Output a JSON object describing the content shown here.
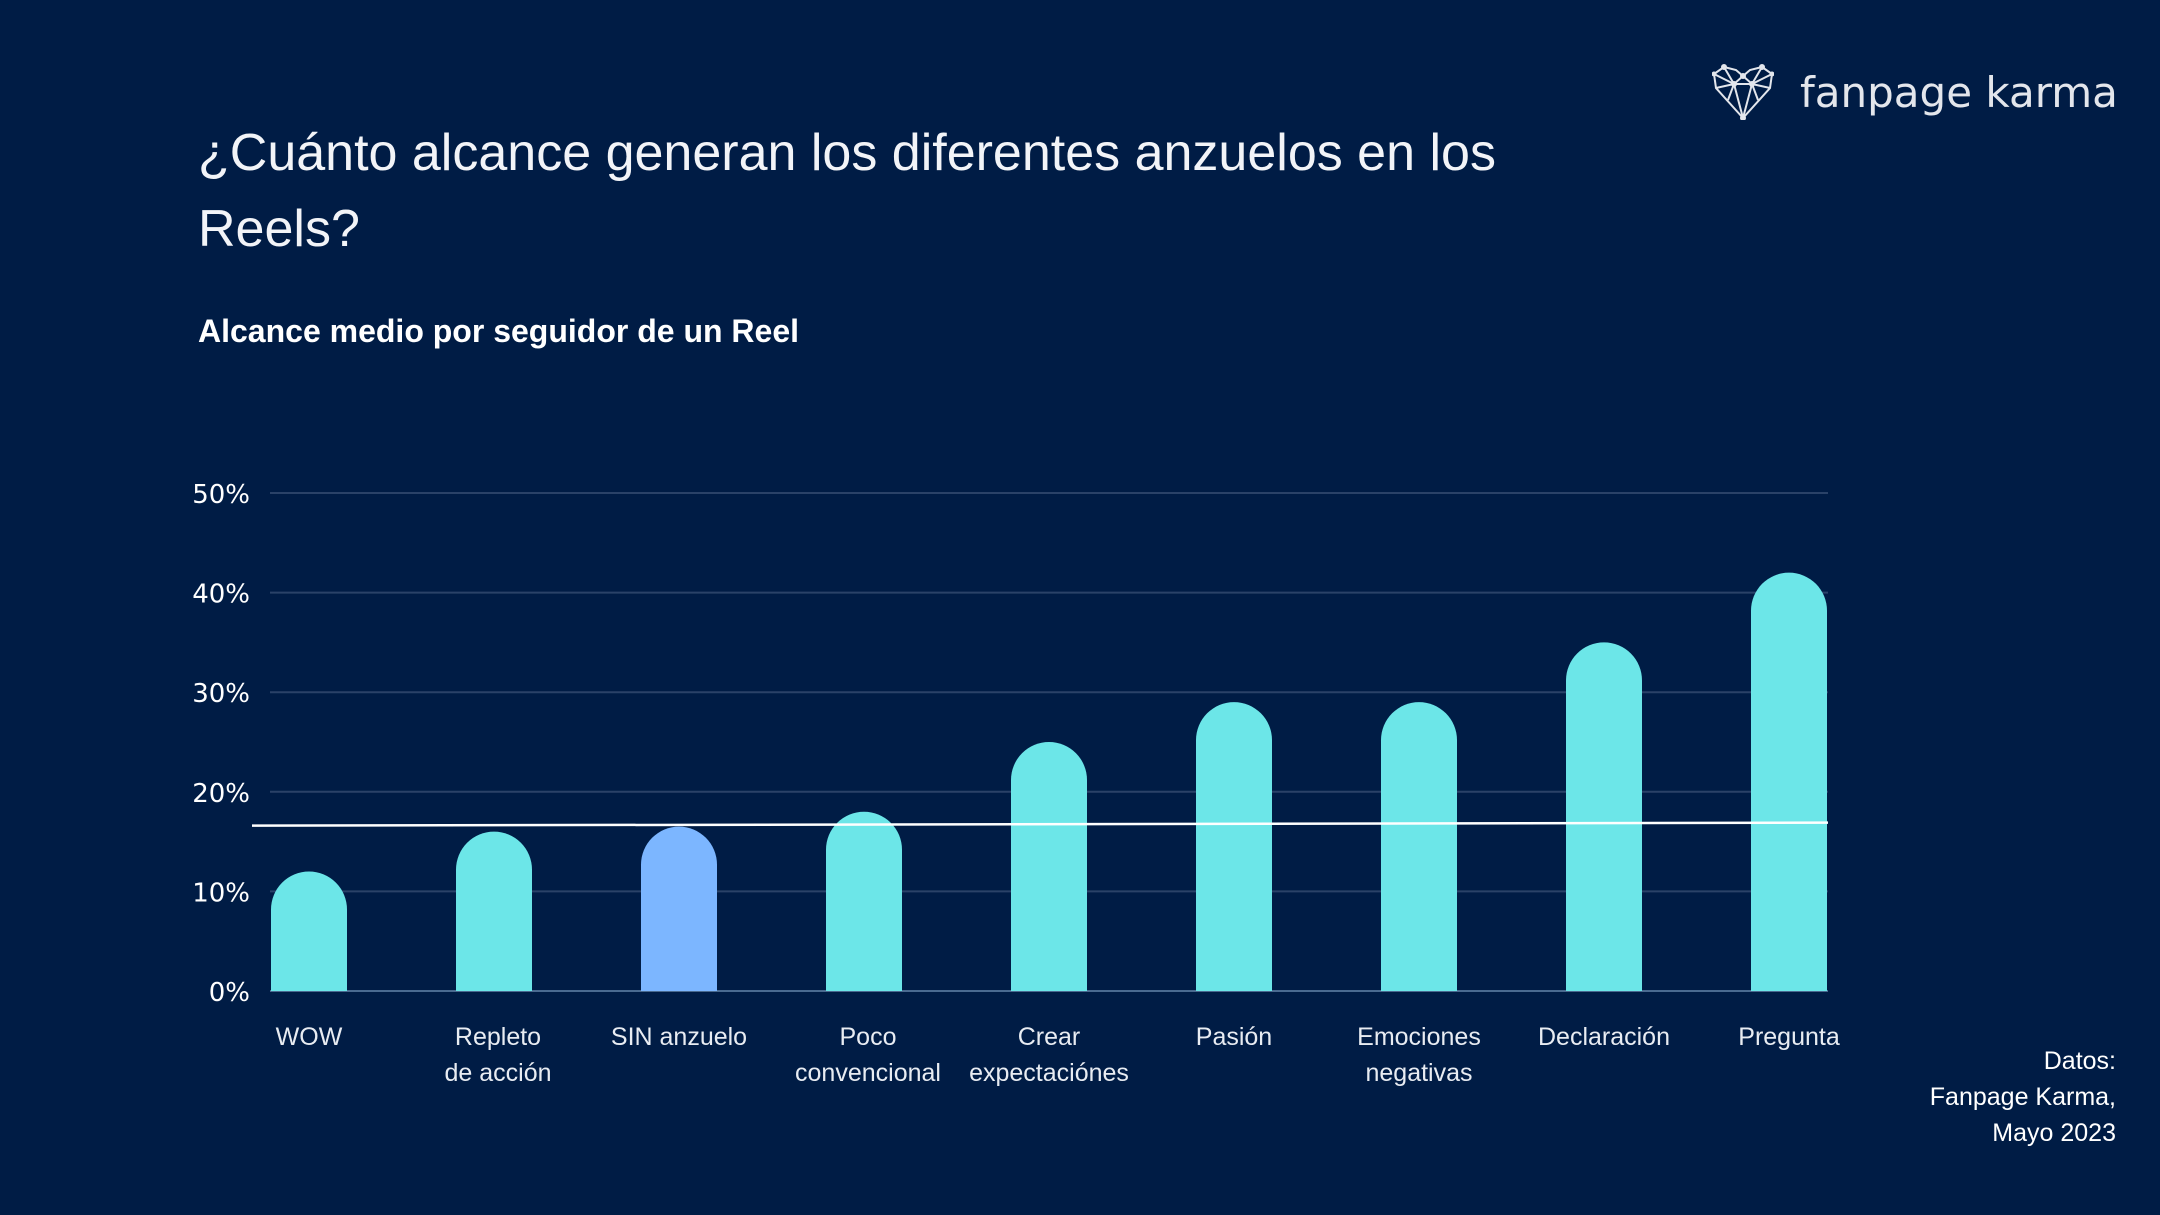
{
  "title": "¿Cuánto alcance generan los diferentes anzuelos en los Reels?",
  "logo": {
    "text": "fanpage karma",
    "icon": "network-heart-icon"
  },
  "source": [
    "Datos:",
    "Fanpage Karma,",
    "Mayo 2023"
  ],
  "colors": {
    "background": "#001c45",
    "bar": "#6ce6e8",
    "highlight": "#7cb6ff",
    "average_line": "#ffffff",
    "grid": "#2a4268"
  },
  "chart_data": {
    "type": "bar",
    "title": "Alcance medio por seguidor de un Reel",
    "categories": [
      [
        "WOW"
      ],
      [
        "Repleto",
        "de acción"
      ],
      [
        "SIN anzuelo"
      ],
      [
        "Poco",
        "convencional"
      ],
      [
        "Crear",
        "expectaciónes"
      ],
      [
        "Pasión"
      ],
      [
        "Emociones",
        "negativas"
      ],
      [
        "Declaración"
      ],
      [
        "Pregunta"
      ]
    ],
    "values": [
      12,
      16,
      16.5,
      18,
      25,
      29,
      29,
      35,
      42
    ],
    "highlighted_category": "SIN anzuelo",
    "average_line": 16.7,
    "ylim": [
      0,
      50
    ],
    "yticks": [
      0,
      10,
      20,
      30,
      40,
      50
    ],
    "ytick_format": "%",
    "grid": true,
    "xlabel": "",
    "ylabel": ""
  }
}
